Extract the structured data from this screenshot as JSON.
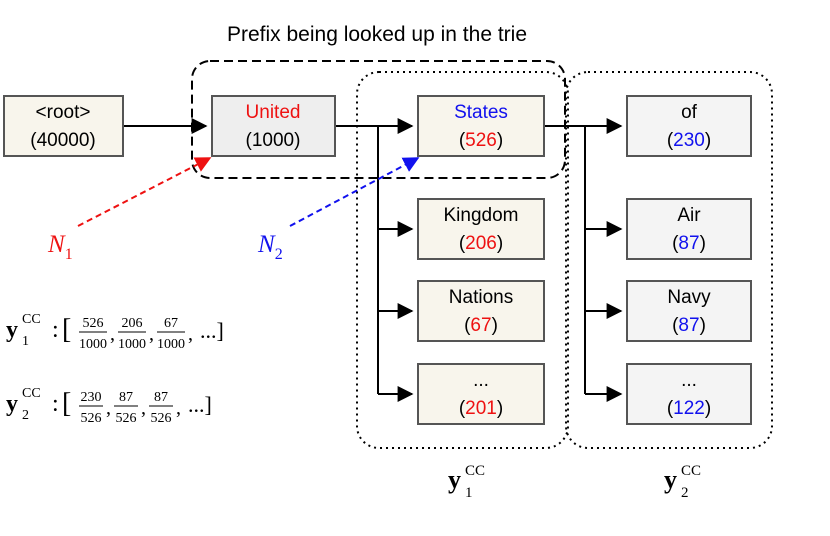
{
  "title": "Prefix being looked up in the trie",
  "colors": {
    "red": "#ee1111",
    "blue": "#1111ee",
    "node_fill_cream": "#f8f5ec",
    "node_fill_gray": "#eeeeee",
    "node_fill_light": "#f4f4f4",
    "stroke": "#555555"
  },
  "nodes": {
    "root": {
      "word": "<root>",
      "count": "(40000)"
    },
    "united": {
      "word": "United",
      "count": "(1000)"
    },
    "states": {
      "word": "States",
      "count_open": "(",
      "count_num": "526",
      "count_close": ")"
    },
    "kingdom": {
      "word": "Kingdom",
      "count_open": "(",
      "count_num": "206",
      "count_close": ")"
    },
    "nations": {
      "word": "Nations",
      "count_open": "(",
      "count_num": "67",
      "count_close": ")"
    },
    "more1": {
      "word": "...",
      "count_open": "(",
      "count_num": "201",
      "count_close": ")"
    },
    "of": {
      "word": "of",
      "count_open": "(",
      "count_num": "230",
      "count_close": ")"
    },
    "air": {
      "word": "Air",
      "count_open": "(",
      "count_num": "87",
      "count_close": ")"
    },
    "navy": {
      "word": "Navy",
      "count_open": "(",
      "count_num": "87",
      "count_close": ")"
    },
    "more2": {
      "word": "...",
      "count_open": "(",
      "count_num": "122",
      "count_close": ")"
    }
  },
  "pointers": {
    "n1": {
      "base": "N",
      "sub": "1"
    },
    "n2": {
      "base": "N",
      "sub": "2"
    }
  },
  "group_labels": {
    "y1": {
      "base": "y",
      "sup": "CC",
      "sub": "1"
    },
    "y2": {
      "base": "y",
      "sup": "CC",
      "sub": "2"
    }
  },
  "formulas": {
    "y1": {
      "base": "y",
      "sup": "CC",
      "sub": "1",
      "fracs": [
        {
          "num": "526",
          "den": "1000"
        },
        {
          "num": "206",
          "den": "1000"
        },
        {
          "num": "67",
          "den": "1000"
        }
      ],
      "tail": "...]"
    },
    "y2": {
      "base": "y",
      "sup": "CC",
      "sub": "2",
      "fracs": [
        {
          "num": "230",
          "den": "526"
        },
        {
          "num": "87",
          "den": "526"
        },
        {
          "num": "87",
          "den": "526"
        }
      ],
      "tail": "...]"
    }
  }
}
